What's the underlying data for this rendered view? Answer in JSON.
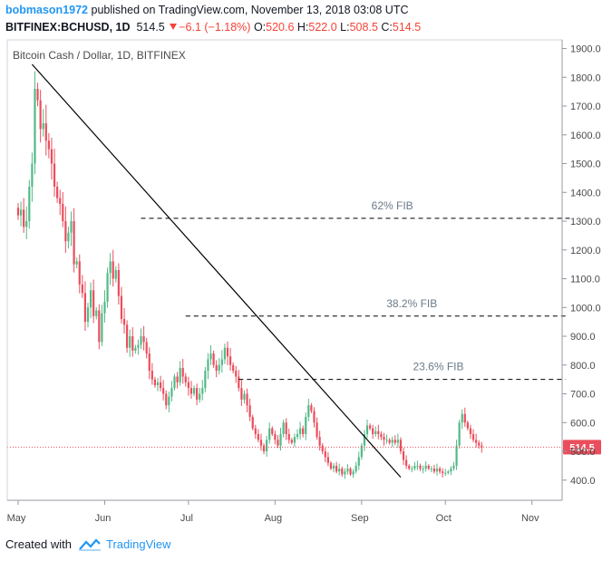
{
  "header": {
    "author": "bobmason1972",
    "published_text": "published on TradingView.com, November 13, 2018 03:08 UTC",
    "symbol": "BITFINEX:BCHUSD, 1D",
    "last": "514.5",
    "change": "−6.1 (−1.18%)",
    "o_label": "O:",
    "o_value": "520.6",
    "h_label": "H:",
    "h_value": "522.0",
    "l_label": "L:",
    "l_value": "508.5",
    "c_label": "C:",
    "c_value": "514.5"
  },
  "footer": {
    "created_with": "Created with",
    "brand": "TradingView"
  },
  "colors": {
    "up": "#53b987",
    "down": "#eb4d5c",
    "price_line": "#eb4d5c",
    "axis_text": "#4a4a4a",
    "fib_text": "#6a7a8a"
  },
  "chart_data": {
    "type": "candlestick",
    "title": "Bitcoin Cash / Dollar, 1D, BITFINEX",
    "ylim": [
      330,
      1930
    ],
    "y_ticks": [
      400,
      500,
      600,
      700,
      800,
      900,
      1000,
      1100,
      1200,
      1300,
      1400,
      1500,
      1600,
      1700,
      1800,
      1900
    ],
    "y_tick_labels": [
      "400.0",
      "500.0",
      "600.0",
      "700.0",
      "800.0",
      "900.0",
      "1000.0",
      "1100.0",
      "1200.0",
      "1300.0",
      "1400.0",
      "1500.0",
      "1600.0",
      "1700.0",
      "1800.0",
      "1900.0"
    ],
    "x_ticks": [
      {
        "label": "May",
        "day": 0
      },
      {
        "label": "Jun",
        "day": 31
      },
      {
        "label": "Jul",
        "day": 61
      },
      {
        "label": "Aug",
        "day": 92
      },
      {
        "label": "Sep",
        "day": 123
      },
      {
        "label": "Oct",
        "day": 153
      },
      {
        "label": "Nov",
        "day": 184
      }
    ],
    "last_price": 514.5,
    "last_price_label": "514.5",
    "fib_levels": [
      {
        "label": "62% FIB",
        "value": 1310,
        "from_day": 44,
        "to_day": 198
      },
      {
        "label": "38.2% FIB",
        "value": 970,
        "from_day": 60,
        "to_day": 196
      },
      {
        "label": "23.6% FIB",
        "value": 750,
        "from_day": 79,
        "to_day": 196
      }
    ],
    "trendline": {
      "from": {
        "day": 5,
        "value": 1845
      },
      "to": {
        "day": 137,
        "value": 410
      }
    },
    "closes": [
      1320,
      1340,
      1280,
      1300,
      1420,
      1500,
      1760,
      1720,
      1620,
      1640,
      1580,
      1550,
      1500,
      1420,
      1380,
      1360,
      1300,
      1230,
      1260,
      1300,
      1150,
      1160,
      1080,
      1050,
      950,
      1000,
      1060,
      970,
      990,
      880,
      980,
      1020,
      1120,
      1160,
      1100,
      1130,
      1040,
      960,
      940,
      860,
      900,
      850,
      860,
      870,
      900,
      880,
      840,
      780,
      750,
      730,
      740,
      720,
      700,
      660,
      690,
      720,
      760,
      740,
      790,
      760,
      740,
      720,
      700,
      720,
      680,
      700,
      720,
      780,
      820,
      840,
      800,
      780,
      800,
      820,
      860,
      830,
      800,
      780,
      760,
      720,
      680,
      700,
      660,
      620,
      580,
      560,
      540,
      520,
      500,
      540,
      580,
      560,
      540,
      520,
      560,
      600,
      560,
      540,
      530,
      550,
      560,
      580,
      560,
      620,
      660,
      640,
      600,
      550,
      520,
      500,
      480,
      460,
      440,
      450,
      430,
      440,
      420,
      430,
      440,
      420,
      430,
      450,
      480,
      520,
      560,
      590,
      580,
      560,
      570,
      560,
      550,
      540,
      540,
      530,
      540,
      530,
      540,
      500,
      470,
      450,
      440,
      440,
      450,
      450,
      440,
      440,
      450,
      440,
      440,
      430,
      440,
      430,
      425,
      425,
      430,
      440,
      450,
      520,
      600,
      630,
      600,
      580,
      560,
      540,
      530,
      520,
      514.5
    ]
  }
}
